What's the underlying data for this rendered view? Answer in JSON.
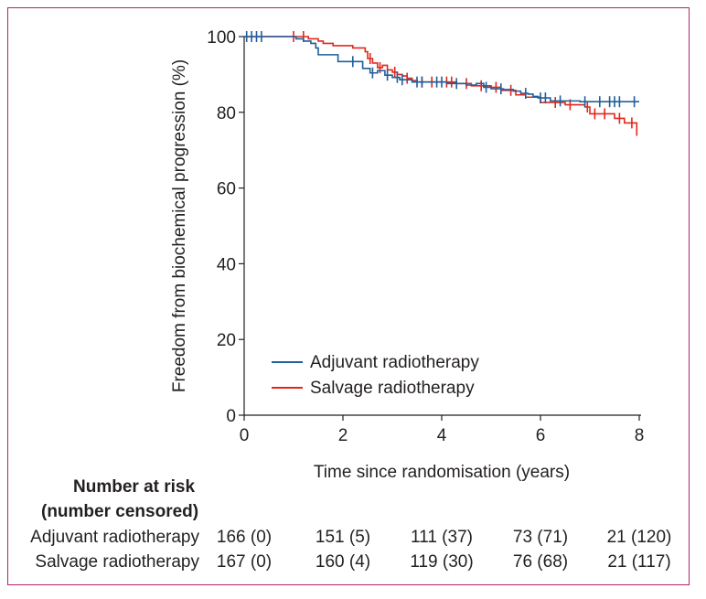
{
  "chart_data": {
    "type": "line",
    "subtype": "kaplan-meier",
    "xlabel": "Time since randomisation (years)",
    "ylabel": "Freedom from biochemical progression (%)",
    "xlim": [
      0,
      8
    ],
    "ylim": [
      0,
      100
    ],
    "xticks": [
      "0",
      "2",
      "4",
      "6",
      "8"
    ],
    "yticks": [
      "0",
      "20",
      "40",
      "60",
      "80",
      "100"
    ],
    "grid": false,
    "legend_position": "bottom-left",
    "series": [
      {
        "name": "Adjuvant radiotherapy",
        "color": "#1f5f9c",
        "x": [
          0,
          0.9,
          1.05,
          1.2,
          1.35,
          1.45,
          1.5,
          1.9,
          2.4,
          2.55,
          2.7,
          2.85,
          3.0,
          3.15,
          3.25,
          3.4,
          3.55,
          3.8,
          4.1,
          4.5,
          4.7,
          4.85,
          5.0,
          5.25,
          5.45,
          5.6,
          5.75,
          5.85,
          5.95,
          6.2,
          6.8,
          8.0
        ],
        "y": [
          100,
          100,
          99.4,
          98.8,
          98.2,
          97,
          95.2,
          93.4,
          91.6,
          90.4,
          91,
          89.8,
          89.2,
          88.6,
          88.6,
          88.0,
          88.0,
          88.0,
          87.6,
          87.2,
          87.6,
          86.6,
          86.2,
          86.0,
          85.6,
          85.0,
          84.8,
          84.2,
          83.8,
          83.0,
          82.8,
          82.8
        ],
        "censor_x": [
          0.05,
          0.15,
          0.25,
          0.35,
          2.2,
          2.6,
          2.9,
          3.1,
          3.2,
          3.5,
          3.6,
          3.9,
          4.0,
          4.3,
          4.9,
          5.2,
          5.7,
          6.0,
          6.1,
          6.4,
          6.9,
          7.2,
          7.4,
          7.5,
          7.6,
          7.9
        ]
      },
      {
        "name": "Salvage radiotherapy",
        "color": "#e0281c",
        "x": [
          0,
          0.85,
          1.3,
          1.5,
          1.6,
          1.8,
          2.2,
          2.4,
          2.45,
          2.5,
          2.6,
          2.7,
          2.8,
          2.9,
          3.0,
          3.1,
          3.2,
          3.3,
          3.4,
          3.5,
          4.0,
          4.3,
          4.6,
          5.0,
          5.2,
          5.5,
          5.7,
          6.0,
          6.5,
          6.9,
          7.0,
          7.5,
          7.7,
          7.9,
          7.95
        ],
        "y": [
          100,
          100,
          99.4,
          98.8,
          98.2,
          97.6,
          97.0,
          97.0,
          96.0,
          94.2,
          93.0,
          91.8,
          92.4,
          91.2,
          90.6,
          90.0,
          89.6,
          89.0,
          88.4,
          88.0,
          88.0,
          87.6,
          87.0,
          86.6,
          85.8,
          84.6,
          84.0,
          82.6,
          82.0,
          81.4,
          79.6,
          78.4,
          77.2,
          77.2,
          73.8
        ],
        "censor_x": [
          1.0,
          1.2,
          2.55,
          2.75,
          3.05,
          3.3,
          3.6,
          3.8,
          4.1,
          4.2,
          4.5,
          4.8,
          5.1,
          5.4,
          6.3,
          6.6,
          6.95,
          7.1,
          7.3,
          7.6,
          7.85
        ]
      }
    ]
  },
  "risk_table": {
    "header_line1": "Number at risk",
    "header_line2": "(number censored)",
    "rows": [
      {
        "label": "Adjuvant radiotherapy",
        "values": [
          "166 (0)",
          "151 (5)",
          "111 (37)",
          "73 (71)",
          "21 (120)"
        ]
      },
      {
        "label": "Salvage radiotherapy",
        "values": [
          "167 (0)",
          "160 (4)",
          "119 (30)",
          "76 (68)",
          "21 (117)"
        ]
      }
    ]
  }
}
